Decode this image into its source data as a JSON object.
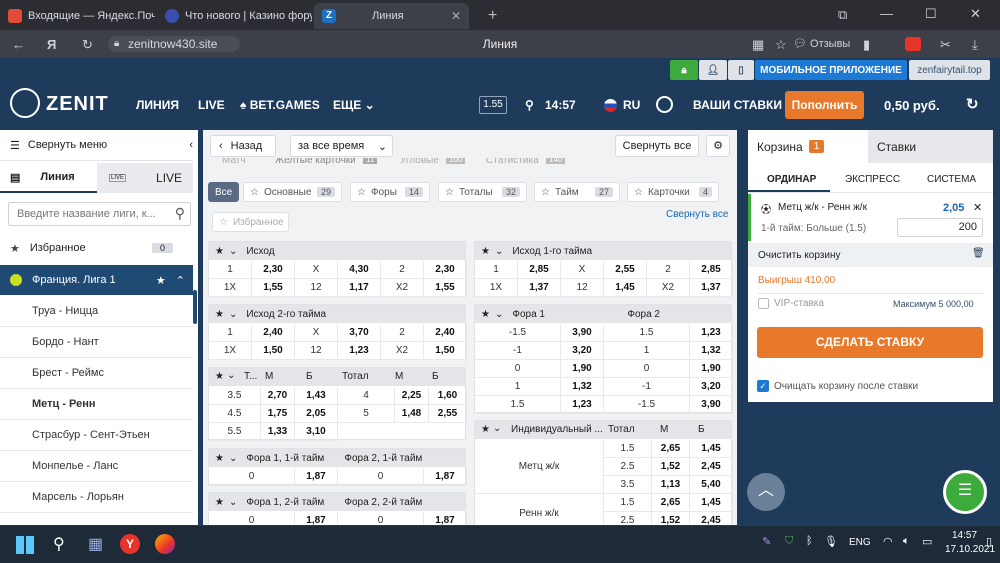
{
  "browser": {
    "tabs": [
      {
        "label": "Входящие — Яндекс.Почта"
      },
      {
        "label": "Что нового | Казино фору"
      },
      {
        "label": "Линия"
      }
    ],
    "url": "zenitnow430.site",
    "page_title": "Линия",
    "reviews_label": "Отзывы"
  },
  "promo": {
    "mobile_app": "МОБИЛЬНОЕ ПРИЛОЖЕНИЕ",
    "mirror": "zenfairytail.top"
  },
  "header": {
    "logo": "ZENIT",
    "nav": [
      "ЛИНИЯ",
      "LIVE",
      "BET.GAMES",
      "ЕЩЕ"
    ],
    "odds_format": "1.55",
    "time": "14:57",
    "lang": "RU",
    "my_bets": "ВАШИ СТАВКИ",
    "deposit": "Пополнить",
    "balance": "0,50 руб."
  },
  "sidebar": {
    "collapse": "Свернуть меню",
    "tab_line": "Линия",
    "tab_live": "LIVE",
    "live_badge": "LIVE",
    "search_placeholder": "Введите название лиги, к...",
    "favorites": "Избранное",
    "favorites_count": "0",
    "league": "Франция. Лига 1",
    "matches": [
      "Труа - Ницца",
      "Бордо - Нант",
      "Брест - Реймс",
      "Метц - Ренн",
      "Страсбур - Сент-Этьен",
      "Монпелье - Ланс",
      "Марсель - Лорьян"
    ]
  },
  "main": {
    "back": "Назад",
    "period": "за все время",
    "collapse_all": "Свернуть все",
    "tabs_faded": [
      "Матч",
      "Желтые карточки",
      "Угловые",
      "Статистика"
    ],
    "tabs_faded_counts": [
      "",
      "11",
      "100",
      "140"
    ],
    "filters": [
      {
        "label": "Все",
        "count": ""
      },
      {
        "label": "Основные",
        "count": "29"
      },
      {
        "label": "Форы",
        "count": "14"
      },
      {
        "label": "Тоталы",
        "count": "32"
      },
      {
        "label": "Тайм",
        "count": "27"
      },
      {
        "label": "Карточки",
        "count": "4"
      }
    ],
    "favorites_filter": "Избранное",
    "collapse_all_link": "Свернуть все",
    "m_outcome": {
      "title": "Исход",
      "rows": [
        [
          "1",
          "2,30",
          "X",
          "4,30",
          "2",
          "2,30"
        ],
        [
          "1X",
          "1,55",
          "12",
          "1,17",
          "X2",
          "1,55"
        ]
      ]
    },
    "m_outcome_h1": {
      "title": "Исход 1-го тайма",
      "rows": [
        [
          "1",
          "2,85",
          "X",
          "2,55",
          "2",
          "2,85"
        ],
        [
          "1X",
          "1,37",
          "12",
          "1,45",
          "X2",
          "1,37"
        ]
      ]
    },
    "m_outcome_h2": {
      "title": "Исход 2-го тайма",
      "rows": [
        [
          "1",
          "2,40",
          "X",
          "3,70",
          "2",
          "2,40"
        ],
        [
          "1X",
          "1,50",
          "12",
          "1,23",
          "X2",
          "1,50"
        ]
      ]
    },
    "m_handicap": {
      "title1": "Фора 1",
      "title2": "Фора 2",
      "rows": [
        [
          "-1.5",
          "3,90",
          "1.5",
          "1,23"
        ],
        [
          "-1",
          "3,20",
          "1",
          "1,32"
        ],
        [
          "0",
          "1,90",
          "0",
          "1,90"
        ],
        [
          "1",
          "1,32",
          "-1",
          "3,20"
        ],
        [
          "1.5",
          "1,23",
          "-1.5",
          "3,90"
        ]
      ]
    },
    "m_total": {
      "h": [
        "Т...",
        "М",
        "Б",
        "Тотал",
        "М",
        "Б"
      ],
      "rows": [
        [
          "3.5",
          "2,70",
          "1,43",
          "4",
          "2,25",
          "1,60"
        ],
        [
          "4.5",
          "1,75",
          "2,05",
          "5",
          "1,48",
          "2,55"
        ],
        [
          "5.5",
          "1,33",
          "3,10",
          "",
          "",
          ""
        ]
      ]
    },
    "m_ind": {
      "title": "Индивидуальный ...",
      "h": [
        "Тотал",
        "М",
        "Б"
      ],
      "team1": "Метц ж/к",
      "team2": "Ренн ж/к",
      "rows": [
        [
          "1.5",
          "2,65",
          "1,45"
        ],
        [
          "2.5",
          "1,52",
          "2,45"
        ],
        [
          "3.5",
          "1,13",
          "5,40"
        ],
        [
          "1.5",
          "2,65",
          "1,45"
        ],
        [
          "2.5",
          "1,52",
          "2,45"
        ]
      ]
    },
    "m_hcp_h1": {
      "title1": "Фора 1, 1-й тайм",
      "title2": "Фора 2, 1-й тайм",
      "row": [
        "0",
        "1,87",
        "0",
        "1,87"
      ]
    },
    "m_hcp_h2": {
      "title1": "Фора 1, 2-й тайм",
      "title2": "Фора 2, 2-й тайм",
      "row": [
        "0",
        "1,87",
        "0",
        "1,87"
      ]
    }
  },
  "betslip": {
    "tab_basket": "Корзина",
    "basket_count": "1",
    "tab_bets": "Ставки",
    "modes": [
      "ОРДИНАР",
      "ЭКСПРЕСС",
      "СИСТЕМА"
    ],
    "event": "Метц ж/к - Ренн ж/к",
    "odds": "2,05",
    "market": "1-й тайм: Больше (1.5)",
    "stake": "200",
    "clear": "Очистить корзину",
    "win": "Выигрыш 410,00",
    "vip": "VIP-ставка",
    "max": "Максимум 5 000,00",
    "place": "СДЕЛАТЬ СТАВКУ",
    "clear_after": "Очищать корзину после ставки"
  },
  "taskbar": {
    "lang": "ENG",
    "time": "14:57",
    "date": "17.10.2021"
  },
  "colors": {
    "header": "#1e3b5c",
    "accent": "#e8792a",
    "active_league": "#1e4a74",
    "odds_blue": "#1a66b5"
  }
}
